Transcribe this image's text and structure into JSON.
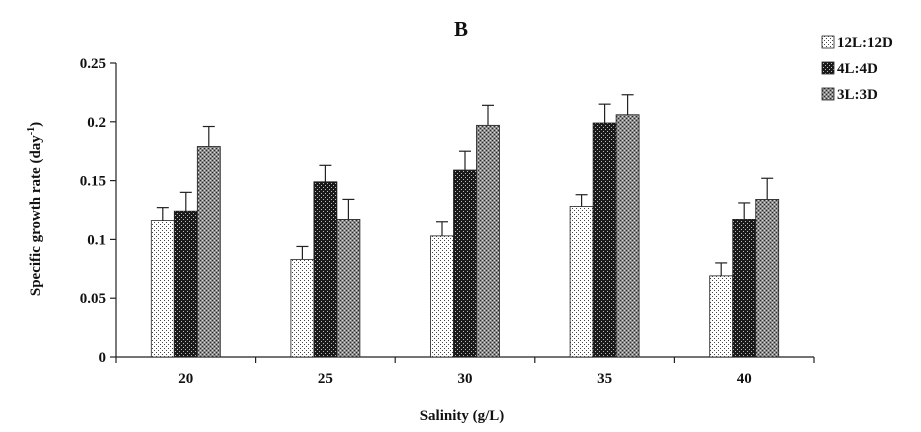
{
  "chart_data": {
    "type": "bar",
    "title": "B",
    "xlabel": "Salinity (g/L)",
    "ylabel": "Specific growth rate  (day",
    "ylabel_sup": "-1",
    "ylabel_end": ")",
    "categories": [
      "20",
      "25",
      "30",
      "35",
      "40"
    ],
    "ylim": [
      0,
      0.25
    ],
    "yticks": [
      "0",
      "0.05",
      "0.1",
      "0.15",
      "0.2",
      "0.25"
    ],
    "legend_position": "top-right",
    "series": [
      {
        "name": "12L:12D",
        "values": [
          0.116,
          0.083,
          0.103,
          0.128,
          0.069
        ],
        "errors": [
          0.011,
          0.011,
          0.012,
          0.01,
          0.011
        ]
      },
      {
        "name": "4L:4D",
        "values": [
          0.124,
          0.149,
          0.159,
          0.199,
          0.117
        ],
        "errors": [
          0.016,
          0.014,
          0.016,
          0.016,
          0.014
        ]
      },
      {
        "name": "3L:3D",
        "values": [
          0.179,
          0.117,
          0.197,
          0.206,
          0.134
        ],
        "errors": [
          0.017,
          0.017,
          0.017,
          0.017,
          0.018
        ]
      }
    ]
  }
}
